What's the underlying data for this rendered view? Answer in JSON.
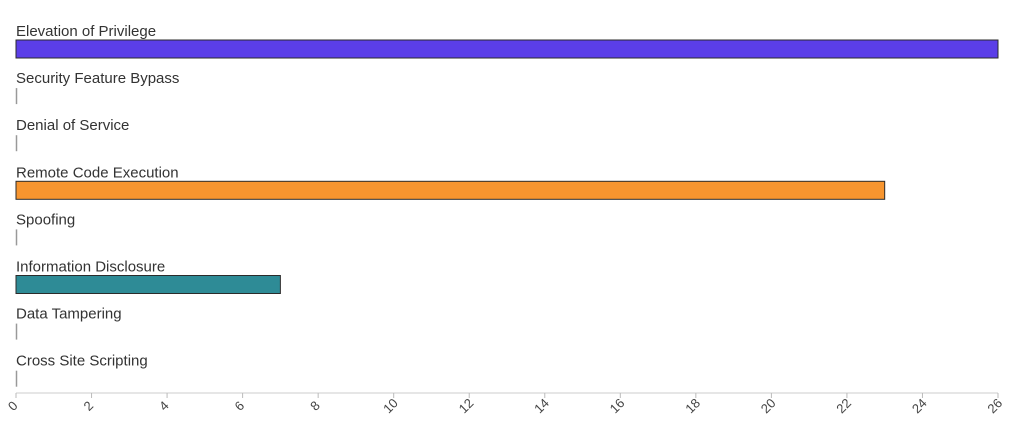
{
  "chart_data": {
    "type": "bar",
    "orientation": "horizontal",
    "categories": [
      "Elevation of Privilege",
      "Security Feature Bypass",
      "Denial of Service",
      "Remote Code Execution",
      "Spoofing",
      "Information Disclosure",
      "Data Tampering",
      "Cross Site Scripting"
    ],
    "values": [
      26,
      0,
      0,
      23,
      0,
      7,
      0,
      0
    ],
    "colors": [
      "#5b3ee8",
      "#999999",
      "#999999",
      "#f7952f",
      "#999999",
      "#2e8b96",
      "#999999",
      "#999999"
    ],
    "xlim": [
      0,
      26
    ],
    "xticks": [
      0,
      2,
      4,
      6,
      8,
      10,
      12,
      14,
      16,
      18,
      20,
      22,
      24,
      26
    ],
    "grid": false,
    "legend": "none"
  }
}
